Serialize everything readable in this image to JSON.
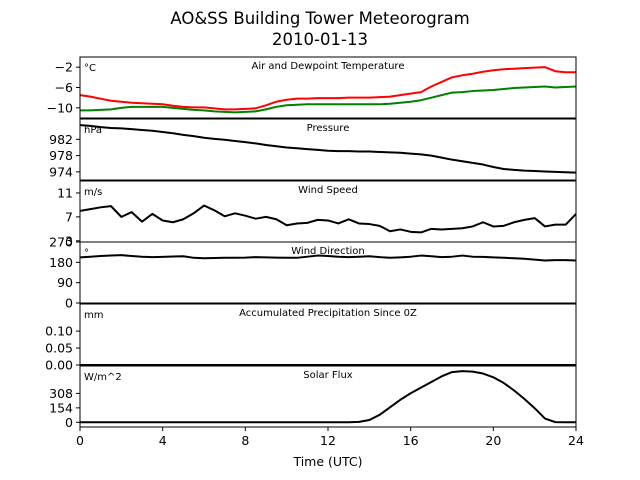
{
  "chart_data": {
    "type": "line",
    "title": "AO&SS Building Tower Meteorogram",
    "subtitle": "2010-01-13",
    "xlabel": "Time (UTC)",
    "xlim": [
      0,
      24
    ],
    "xticks": [
      0,
      4,
      8,
      12,
      16,
      20,
      24
    ],
    "x": [
      0,
      0.5,
      1,
      1.5,
      2,
      2.5,
      3,
      3.5,
      4,
      4.5,
      5,
      5.5,
      6,
      6.5,
      7,
      7.5,
      8,
      8.5,
      9,
      9.5,
      10,
      10.5,
      11,
      11.5,
      12,
      12.5,
      13,
      13.5,
      14,
      14.5,
      15,
      15.5,
      16,
      16.5,
      17,
      17.5,
      18,
      18.5,
      19,
      19.5,
      20,
      20.5,
      21,
      21.5,
      22,
      22.5,
      23,
      23.5,
      24
    ],
    "panels": [
      {
        "title": "Air and Dewpoint Temperature",
        "unit": "°C",
        "ylim": [
          -12,
          0
        ],
        "yticks": [
          -2,
          -6,
          -10
        ],
        "series": [
          {
            "color": "#ff0000",
            "values": [
              -7.5,
              -7.8,
              -8.2,
              -8.6,
              -8.8,
              -9.0,
              -9.1,
              -9.2,
              -9.3,
              -9.6,
              -9.8,
              -9.9,
              -9.9,
              -10.1,
              -10.3,
              -10.3,
              -10.2,
              -10.1,
              -9.5,
              -8.8,
              -8.4,
              -8.2,
              -8.2,
              -8.1,
              -8.1,
              -8.1,
              -8.0,
              -8.0,
              -8.0,
              -7.9,
              -7.8,
              -7.5,
              -7.2,
              -6.9,
              -5.8,
              -4.9,
              -4.0,
              -3.6,
              -3.3,
              -2.9,
              -2.6,
              -2.4,
              -2.3,
              -2.2,
              -2.1,
              -2.0,
              -2.8,
              -3.0,
              -3.0
            ]
          },
          {
            "color": "#008000",
            "values": [
              -10.5,
              -10.5,
              -10.4,
              -10.3,
              -10.0,
              -9.8,
              -9.8,
              -9.8,
              -9.8,
              -10.0,
              -10.2,
              -10.4,
              -10.5,
              -10.7,
              -10.8,
              -10.9,
              -10.8,
              -10.7,
              -10.3,
              -9.8,
              -9.5,
              -9.4,
              -9.3,
              -9.3,
              -9.3,
              -9.3,
              -9.3,
              -9.3,
              -9.3,
              -9.3,
              -9.2,
              -9.0,
              -8.8,
              -8.5,
              -8.0,
              -7.5,
              -7.0,
              -6.9,
              -6.7,
              -6.6,
              -6.5,
              -6.3,
              -6.1,
              -6.0,
              -5.9,
              -5.8,
              -6.0,
              -5.9,
              -5.8
            ]
          }
        ]
      },
      {
        "title": "Pressure",
        "unit": "hPa",
        "ylim": [
          972,
          987
        ],
        "yticks": [
          982,
          978,
          974
        ],
        "series": [
          {
            "color": "#000000",
            "values": [
              985.5,
              985.3,
              985.0,
              984.8,
              984.7,
              984.5,
              984.3,
              984.1,
              983.8,
              983.5,
              983.1,
              982.8,
              982.4,
              982.1,
              981.9,
              981.6,
              981.3,
              981.0,
              980.6,
              980.3,
              980.0,
              979.8,
              979.6,
              979.4,
              979.2,
              979.1,
              979.1,
              979.0,
              979.0,
              978.9,
              978.8,
              978.7,
              978.5,
              978.3,
              978.0,
              977.5,
              977.0,
              976.6,
              976.2,
              975.8,
              975.2,
              974.7,
              974.5,
              974.3,
              974.2,
              974.1,
              974.0,
              973.9,
              973.8
            ]
          }
        ]
      },
      {
        "title": "Wind Speed",
        "unit": "m/s",
        "ylim": [
          2.8,
          13
        ],
        "yticks": [
          11,
          7,
          3
        ],
        "series": [
          {
            "color": "#000000",
            "values": [
              8.0,
              8.3,
              8.6,
              8.8,
              7.0,
              7.8,
              6.2,
              7.5,
              6.4,
              6.1,
              6.6,
              7.6,
              8.9,
              8.1,
              7.1,
              7.6,
              7.2,
              6.7,
              7.0,
              6.6,
              5.6,
              5.9,
              6.0,
              6.5,
              6.4,
              5.9,
              6.6,
              5.9,
              5.8,
              5.5,
              4.6,
              4.9,
              4.5,
              4.4,
              5.0,
              4.9,
              5.0,
              5.1,
              5.4,
              6.1,
              5.4,
              5.5,
              6.1,
              6.5,
              6.8,
              5.4,
              5.7,
              5.7,
              7.5
            ]
          }
        ]
      },
      {
        "title": "Wind Direction",
        "unit": "°",
        "ylim": [
          0,
          270
        ],
        "yticks": [
          270,
          180,
          90,
          0
        ],
        "series": [
          {
            "color": "#000000",
            "values": [
              202,
              205,
              208,
              210,
              212,
              208,
              205,
              203,
              204,
              206,
              207,
              200,
              198,
              199,
              200,
              200,
              201,
              203,
              202,
              201,
              200,
              200,
              205,
              210,
              208,
              205,
              203,
              205,
              207,
              203,
              200,
              202,
              205,
              210,
              207,
              203,
              205,
              210,
              205,
              204,
              202,
              200,
              198,
              196,
              192,
              188,
              190,
              190,
              188
            ]
          }
        ]
      },
      {
        "title": "Accumulated Precipitation Since 0Z",
        "unit": "mm",
        "ylim": [
          0,
          0.18
        ],
        "yticks": [
          0.1,
          0.05,
          0.0
        ],
        "ytick_labels": [
          "0.10",
          "0.05",
          "0.00"
        ],
        "series": [
          {
            "color": "#000000",
            "values": [
              0,
              0,
              0,
              0,
              0,
              0,
              0,
              0,
              0,
              0,
              0,
              0,
              0,
              0,
              0,
              0,
              0,
              0,
              0,
              0,
              0,
              0,
              0,
              0,
              0,
              0,
              0,
              0,
              0,
              0,
              0,
              0,
              0,
              0,
              0,
              0,
              0,
              0,
              0,
              0,
              0,
              0,
              0,
              0,
              0,
              0,
              0,
              0,
              0
            ]
          }
        ]
      },
      {
        "title": "Solar Flux",
        "unit": "W/m^2",
        "ylim": [
          -50,
          600
        ],
        "yticks": [
          308,
          154,
          0
        ],
        "series": [
          {
            "color": "#000000",
            "values": [
              0,
              0,
              0,
              0,
              0,
              0,
              0,
              0,
              0,
              0,
              0,
              0,
              0,
              0,
              0,
              0,
              0,
              0,
              0,
              0,
              0,
              0,
              0,
              0,
              0,
              0,
              0,
              5,
              25,
              80,
              160,
              240,
              310,
              370,
              430,
              490,
              535,
              545,
              540,
              520,
              480,
              420,
              340,
              250,
              150,
              40,
              2,
              0,
              0
            ]
          }
        ]
      }
    ]
  }
}
